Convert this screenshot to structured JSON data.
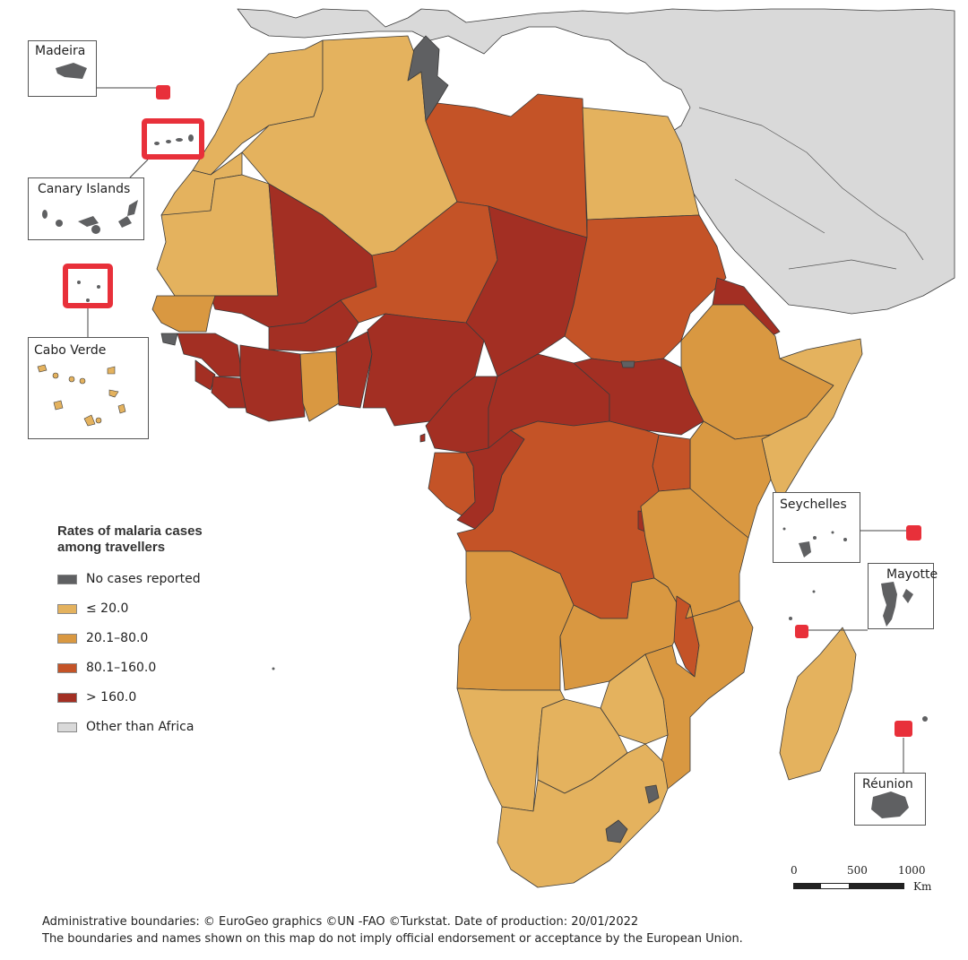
{
  "colors": {
    "no_cases": "#5f6062",
    "le20": "#e4b25e",
    "r20_80": "#d99841",
    "r80_160": "#c45327",
    "gt160": "#a32f23",
    "other": "#d9d9d9",
    "sea": "#ffffff",
    "highlight": "#e8303a"
  },
  "insets": {
    "madeira": "Madeira",
    "canary": "Canary Islands",
    "cabo_verde": "Cabo Verde",
    "seychelles": "Seychelles",
    "mayotte": "Mayotte",
    "reunion": "Réunion"
  },
  "legend": {
    "title": "Rates of malaria cases among travellers",
    "items": [
      {
        "label": "No cases reported",
        "color": "#5f6062"
      },
      {
        "label": "≤ 20.0",
        "color": "#e4b25e"
      },
      {
        "label": "20.1–80.0",
        "color": "#d99841"
      },
      {
        "label": "80.1–160.0",
        "color": "#c45327"
      },
      {
        "label": "> 160.0",
        "color": "#a32f23"
      },
      {
        "label": "Other than Africa",
        "color": "#d9d9d9"
      }
    ]
  },
  "scale": {
    "t0": "0",
    "t500": "500",
    "t1000": "1000",
    "unit": "Km"
  },
  "footer": {
    "line1": "Administrative boundaries: © EuroGeo graphics ©UN -FAO ©Turkstat. Date of production: 20/01/2022",
    "line2": "The boundaries and names shown on this map do not imply official endorsement or acceptance by the European Union."
  }
}
